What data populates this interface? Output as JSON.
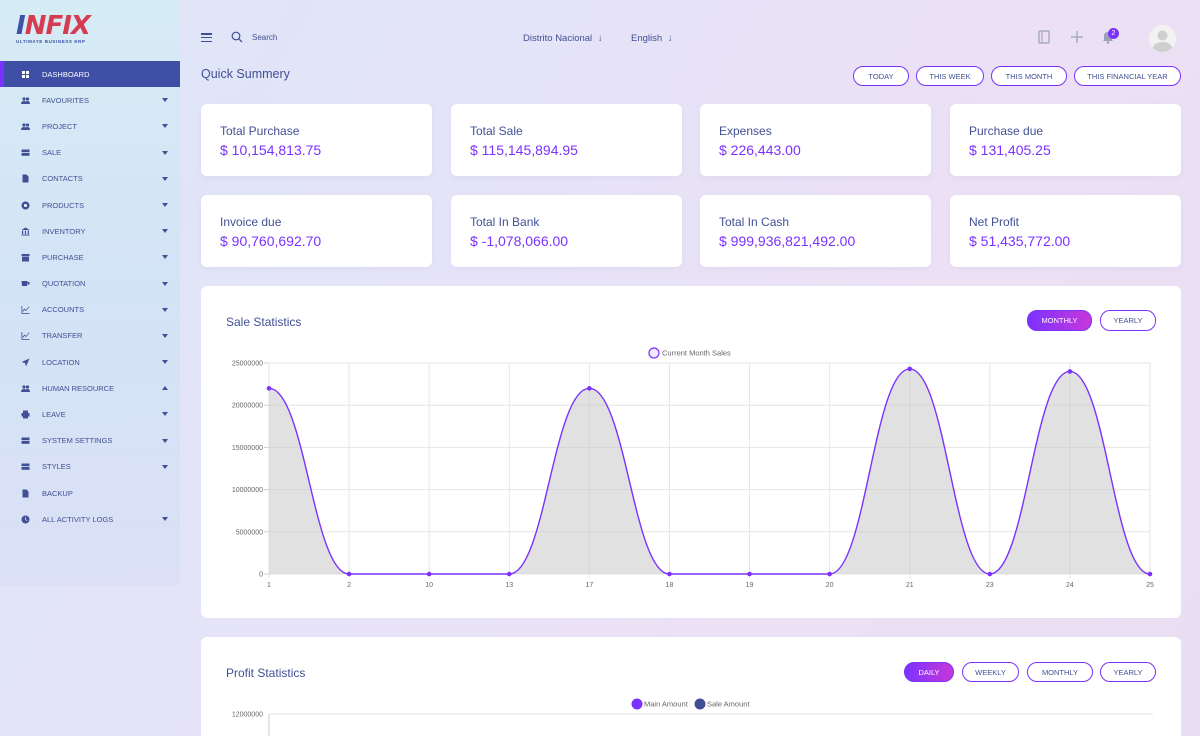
{
  "brand": {
    "logo_main_a": "I",
    "logo_main_b": "NFIX",
    "logo_sub": "ULTIMATE BUSINESS ERP"
  },
  "header": {
    "search_label": "Search",
    "location": "Distrito Nacional",
    "language": "English",
    "notification_count": "2"
  },
  "sidebar": {
    "items": [
      {
        "label": "DASHBOARD",
        "icon": "dashboard-icon",
        "active": true,
        "caret": "none"
      },
      {
        "label": "FAVOURITES",
        "icon": "users-icon",
        "caret": "down"
      },
      {
        "label": "PROJECT",
        "icon": "users-icon",
        "caret": "down"
      },
      {
        "label": "SALE",
        "icon": "drawer-icon",
        "caret": "down"
      },
      {
        "label": "CONTACTS",
        "icon": "file-icon",
        "caret": "down"
      },
      {
        "label": "PRODUCTS",
        "icon": "circle-icon",
        "caret": "down"
      },
      {
        "label": "INVENTORY",
        "icon": "bank-icon",
        "caret": "down"
      },
      {
        "label": "PURCHASE",
        "icon": "store-icon",
        "caret": "down"
      },
      {
        "label": "QUOTATION",
        "icon": "cup-icon",
        "caret": "down"
      },
      {
        "label": "ACCOUNTS",
        "icon": "chart-icon",
        "caret": "down"
      },
      {
        "label": "TRANSFER",
        "icon": "chart-icon",
        "caret": "down"
      },
      {
        "label": "LOCATION",
        "icon": "arrow-icon",
        "caret": "down"
      },
      {
        "label": "HUMAN RESOURCE",
        "icon": "users-icon",
        "caret": "up"
      },
      {
        "label": "LEAVE",
        "icon": "print-icon",
        "caret": "down"
      },
      {
        "label": "SYSTEM SETTINGS",
        "icon": "drawer-icon",
        "caret": "down"
      },
      {
        "label": "STYLES",
        "icon": "drawer-icon",
        "caret": "down"
      },
      {
        "label": "BACKUP",
        "icon": "file-icon",
        "caret": "none"
      },
      {
        "label": "ALL ACTIVITY LOGS",
        "icon": "clock-icon",
        "caret": "down"
      }
    ]
  },
  "summary": {
    "title": "Quick Summery",
    "filters": [
      "TODAY",
      "THIS WEEK",
      "THIS MONTH",
      "THIS FINANCIAL YEAR"
    ],
    "cards": [
      {
        "label": "Total Purchase",
        "value": "$ 10,154,813.75"
      },
      {
        "label": "Total Sale",
        "value": "$ 115,145,894.95"
      },
      {
        "label": "Expenses",
        "value": "$ 226,443.00"
      },
      {
        "label": "Purchase due",
        "value": "$ 131,405.25"
      },
      {
        "label": "Invoice due",
        "value": "$ 90,760,692.70"
      },
      {
        "label": "Total In Bank",
        "value": "$ -1,078,066.00"
      },
      {
        "label": "Total In Cash",
        "value": "$ 999,936,821,492.00"
      },
      {
        "label": "Net Profit",
        "value": "$ 51,435,772.00"
      }
    ]
  },
  "sale_stats": {
    "title": "Sale Statistics",
    "tabs": [
      "MONTHLY",
      "YEARLY"
    ],
    "active_tab": "MONTHLY"
  },
  "profit_stats": {
    "title": "Profit Statistics",
    "tabs": [
      "DAILY",
      "WEEKLY",
      "MONTHLY",
      "YEARLY"
    ],
    "active_tab": "DAILY"
  },
  "chart_data": [
    {
      "type": "area",
      "title": "",
      "xlabel": "",
      "ylabel": "",
      "categories": [
        "1",
        "2",
        "10",
        "13",
        "17",
        "18",
        "19",
        "20",
        "21",
        "23",
        "24",
        "25"
      ],
      "series": [
        {
          "name": "Current Month Sales",
          "values": [
            22000000,
            0,
            0,
            0,
            22000000,
            0,
            0,
            0,
            24300000,
            0,
            24000000,
            0
          ],
          "color": "#7c32ff"
        }
      ],
      "y_ticks": [
        "0",
        "5000000",
        "10000000",
        "15000000",
        "20000000",
        "25000000"
      ],
      "ylim": [
        0,
        25000000
      ],
      "grid": true,
      "legend": "top-center"
    },
    {
      "type": "bar",
      "title": "",
      "series": [
        {
          "name": "Main Amount",
          "color": "#7c32ff"
        },
        {
          "name": "Sale Amount",
          "color": "#415094"
        }
      ],
      "y_ticks": [
        "12000000"
      ],
      "legend": "top-center"
    }
  ]
}
